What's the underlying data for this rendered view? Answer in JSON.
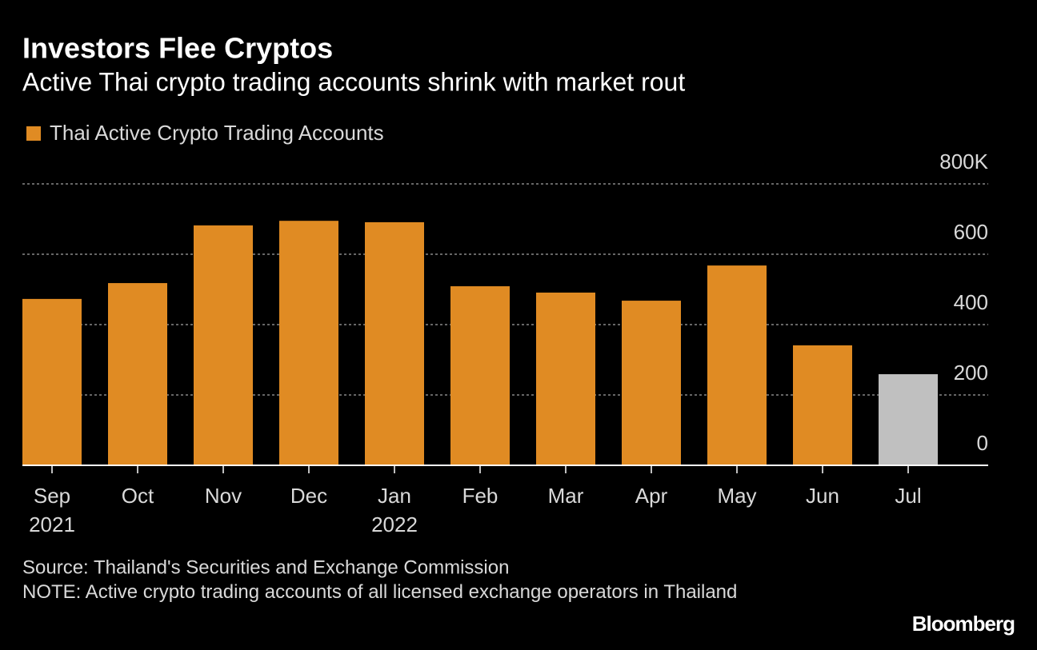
{
  "chart_data": {
    "type": "bar",
    "title": "Investors Flee Cryptos",
    "subtitle": "Active Thai crypto trading accounts shrink with market rout",
    "legend": [
      "Thai Active Crypto Trading Accounts"
    ],
    "categories": [
      "Sep",
      "Oct",
      "Nov",
      "Dec",
      "Jan",
      "Feb",
      "Mar",
      "Apr",
      "May",
      "Jun",
      "Jul"
    ],
    "category_years": [
      "2021",
      null,
      null,
      null,
      "2022",
      null,
      null,
      null,
      null,
      null,
      null
    ],
    "values": [
      473,
      518,
      682,
      695,
      691,
      509,
      491,
      468,
      568,
      341,
      259
    ],
    "colors": [
      "#e08b23",
      "#e08b23",
      "#e08b23",
      "#e08b23",
      "#e08b23",
      "#e08b23",
      "#e08b23",
      "#e08b23",
      "#e08b23",
      "#e08b23",
      "#c0c0c0"
    ],
    "ylim": [
      0,
      800
    ],
    "yticks": [
      0,
      200,
      400,
      600,
      {
        "value": 800,
        "label": "800K"
      }
    ],
    "grid": true,
    "source": "Source: Thailand's Securities and Exchange Commission",
    "note": "NOTE: Active crypto trading accounts of all licensed exchange operators in Thailand",
    "brand": "Bloomberg"
  }
}
